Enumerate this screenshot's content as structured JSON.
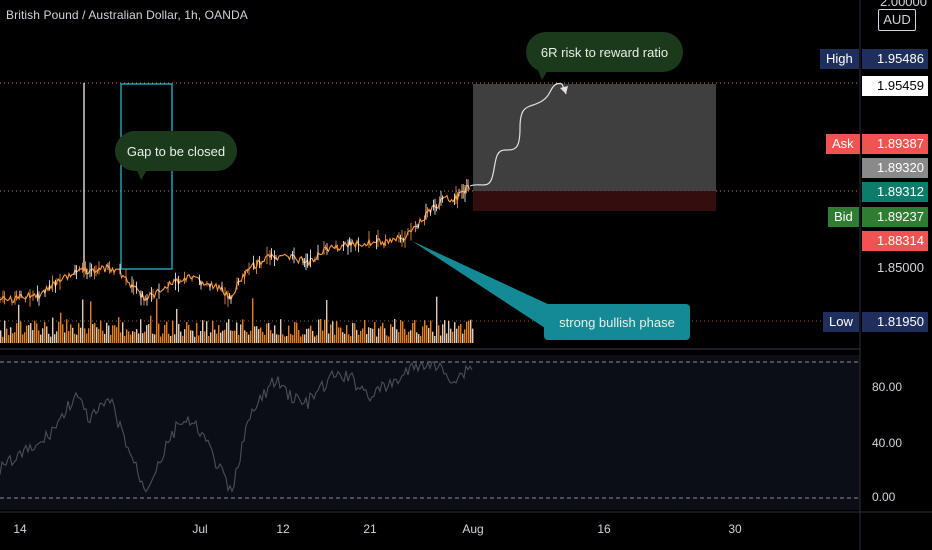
{
  "header": {
    "symbol": "British Pound / Australian Dollar, 1h, OANDA"
  },
  "price_axis": {
    "currency": "AUD",
    "top_label": "2.00000",
    "labels": [
      {
        "name": "high",
        "tag": "High",
        "value": "1.95486",
        "tag_color": "#1e2f5e",
        "value_color": "#1e2f5e",
        "text_color": "#ffffff"
      },
      {
        "name": "target",
        "tag": "",
        "value": "1.95459",
        "tag_color": "",
        "value_color": "#ffffff",
        "text_color": "#000000"
      },
      {
        "name": "ask",
        "tag": "Ask",
        "value": "1.89387",
        "tag_color": "#f05350",
        "value_color": "#f05350",
        "text_color": "#ffffff"
      },
      {
        "name": "entry",
        "tag": "",
        "value": "1.89320",
        "tag_color": "",
        "value_color": "#8a8a8a",
        "text_color": "#ffffff"
      },
      {
        "name": "last",
        "tag": "",
        "value": "1.89312",
        "tag_color": "",
        "value_color": "#0e7c6b",
        "text_color": "#ffffff"
      },
      {
        "name": "bid",
        "tag": "Bid",
        "value": "1.89237",
        "tag_color": "#2e7d32",
        "value_color": "#2e7d32",
        "text_color": "#ffffff"
      },
      {
        "name": "stop",
        "tag": "",
        "value": "1.88314",
        "tag_color": "",
        "value_color": "#f05350",
        "text_color": "#ffffff"
      },
      {
        "name": "level-185",
        "tag": "",
        "value": "1.85000",
        "tag_color": "",
        "value_color": "",
        "text_color": "#d1d4dc"
      },
      {
        "name": "low",
        "tag": "Low",
        "value": "1.81950",
        "tag_color": "#1e2f5e",
        "value_color": "#1e2f5e",
        "text_color": "#ffffff"
      }
    ]
  },
  "annotations": {
    "gap": "Gap to be closed",
    "risk_reward": "6R risk to reward ratio",
    "bullish": "strong bullish phase"
  },
  "rsi": {
    "levels": [
      "80.00",
      "40.00",
      "0.00"
    ]
  },
  "time_axis": {
    "labels": [
      "14",
      "Jul",
      "12",
      "21",
      "Aug",
      "16",
      "30"
    ]
  },
  "colors": {
    "background": "#000000",
    "candle": "#ff9a3c",
    "volume": "#ff8c2a",
    "rsi_line": "#4a4f5a",
    "callout_green": "#1b3a1b",
    "callout_teal": "#138a96",
    "gap_box": "#26c6da",
    "profit_zone": "#4a4a4a",
    "loss_zone": "#3a1010"
  }
}
